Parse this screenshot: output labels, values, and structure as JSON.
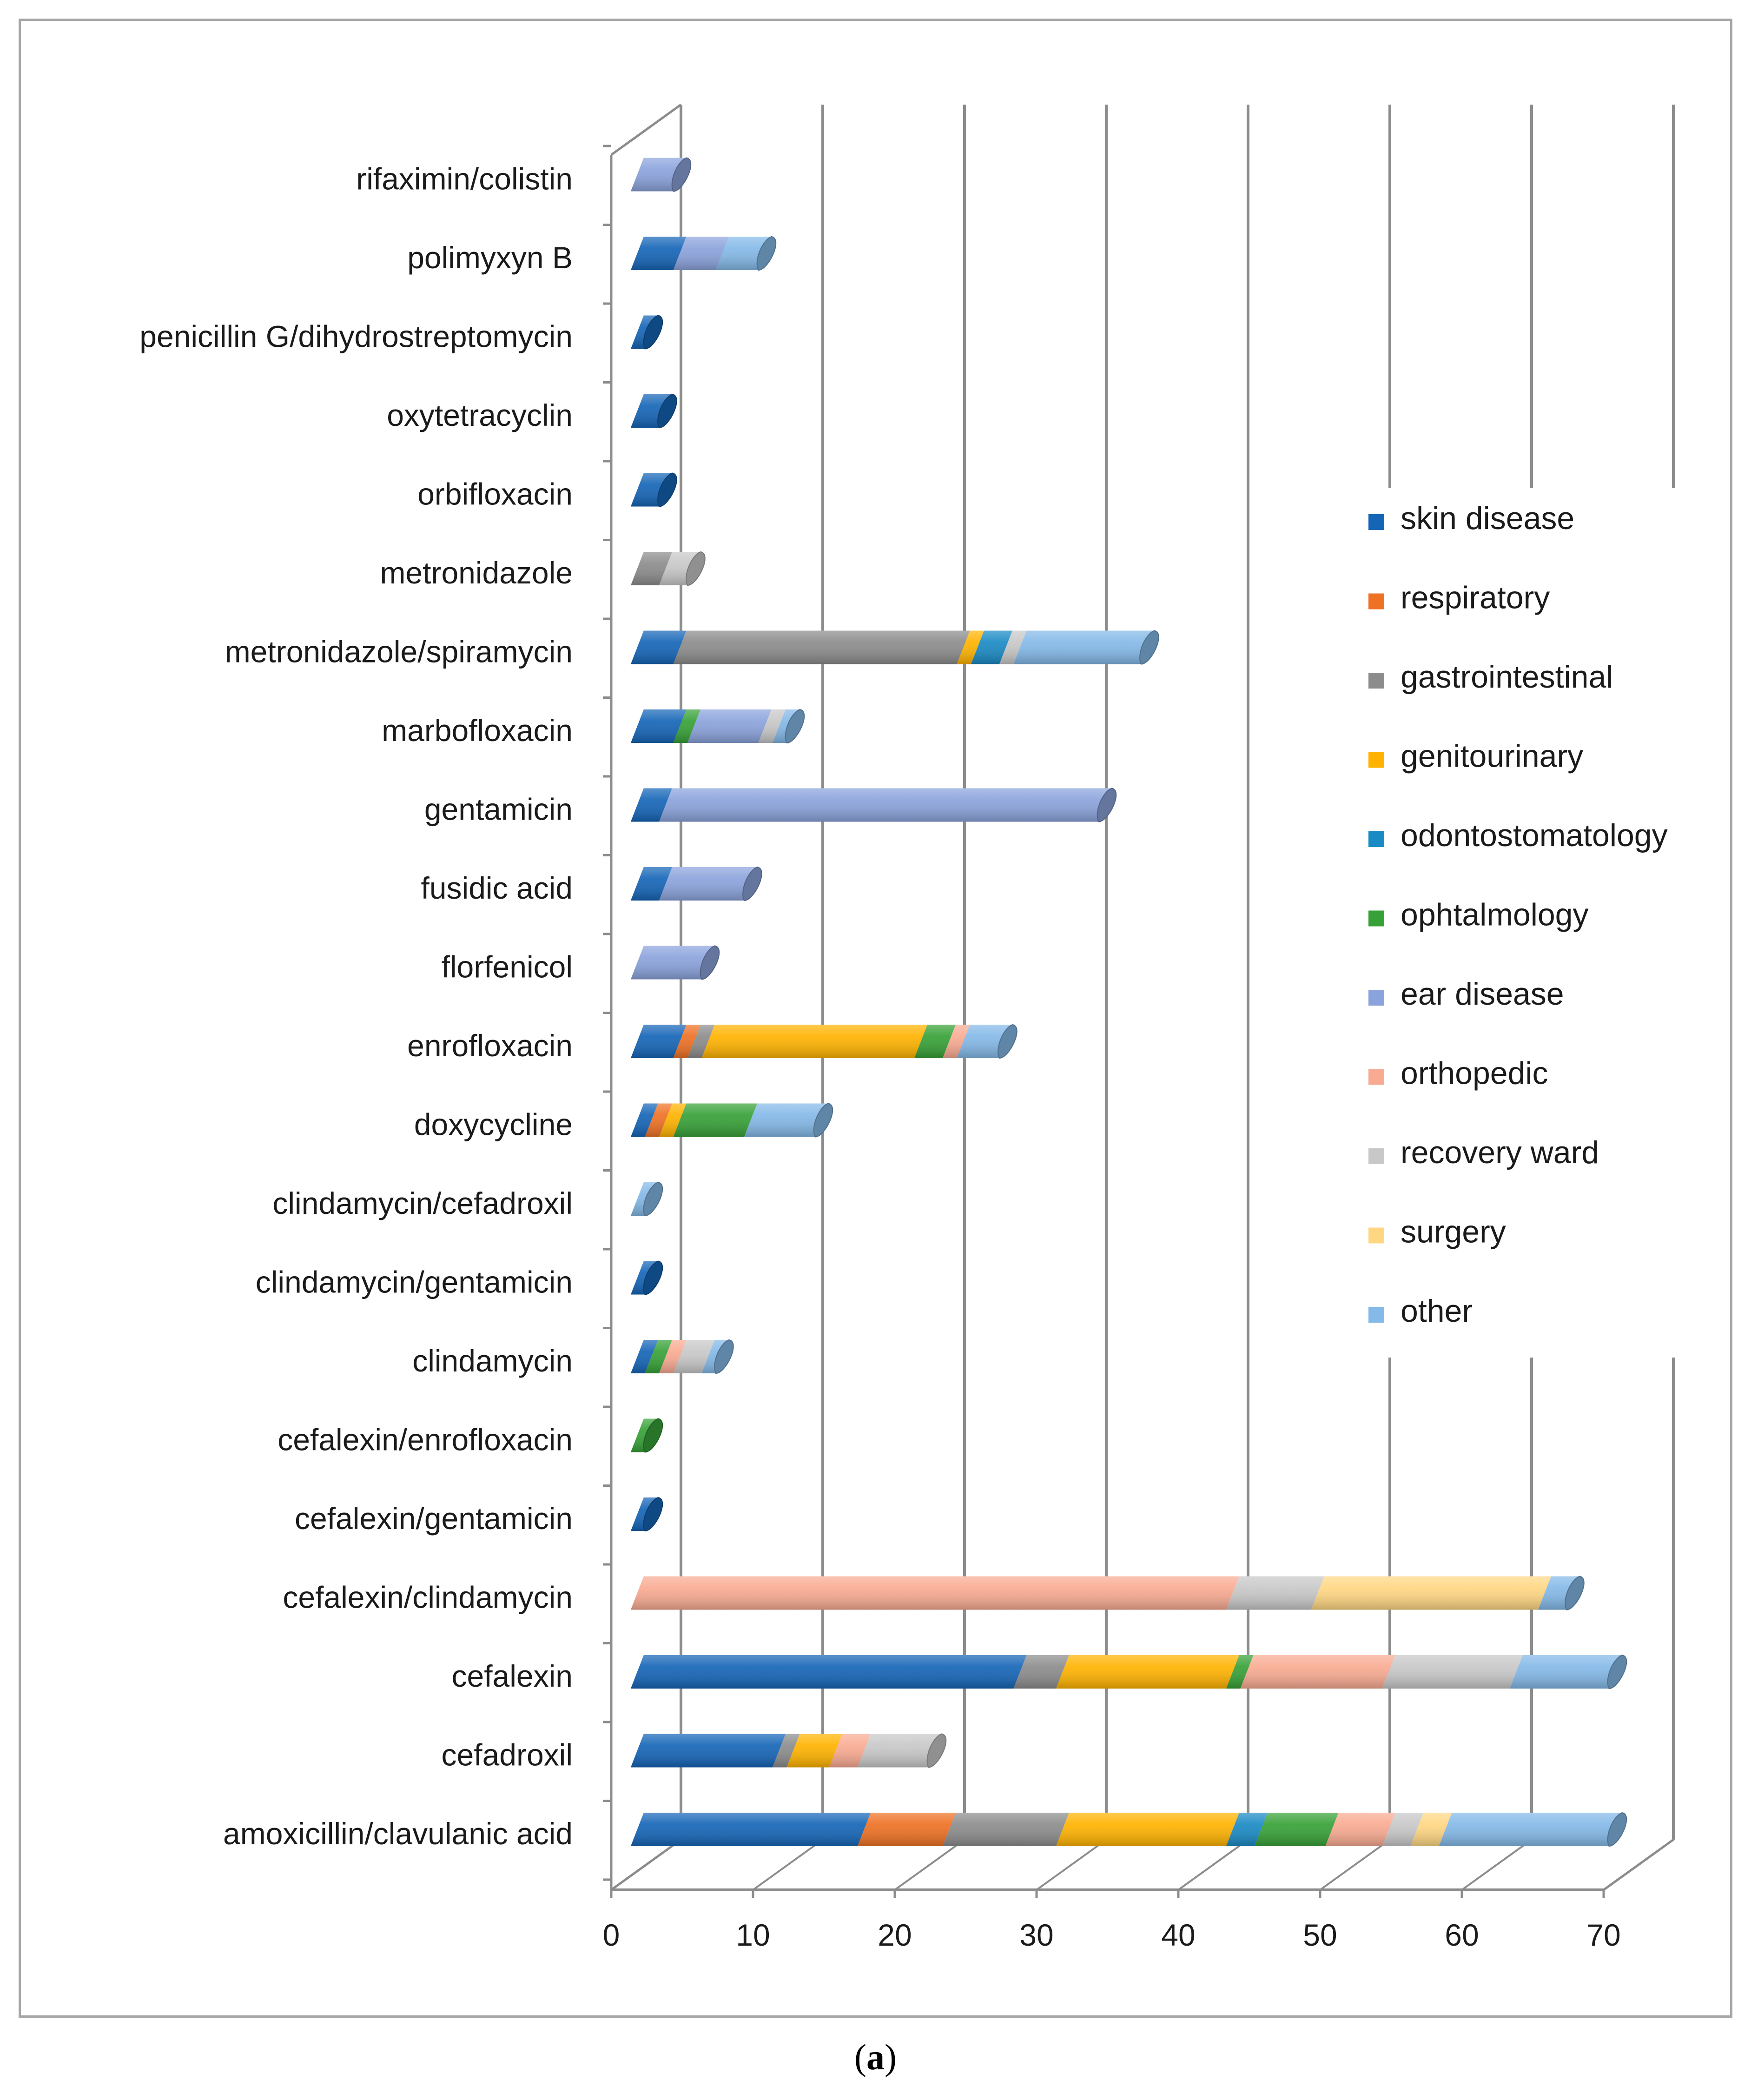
{
  "caption": {
    "open": "(",
    "letter": "a",
    "close": ")"
  },
  "chart_data": {
    "type": "bar",
    "orientation": "horizontal",
    "stacked": true,
    "style": "3d-cylinder",
    "xlim": [
      0,
      70
    ],
    "xticks": [
      0,
      10,
      20,
      30,
      40,
      50,
      60,
      70
    ],
    "grid": true,
    "legend_position": "right",
    "categories": [
      "amoxicillin/clavulanic acid",
      "cefadroxil",
      "cefalexin",
      "cefalexin/clindamycin",
      "cefalexin/gentamicin",
      "cefalexin/enrofloxacin",
      "clindamycin",
      "clindamycin/gentamicin",
      "clindamycin/cefadroxil",
      "doxycycline",
      "enrofloxacin",
      "florfenicol",
      "fusidic acid",
      "gentamicin",
      "marbofloxacin",
      "metronidazole/spiramycin",
      "metronidazole",
      "orbifloxacin",
      "oxytetracyclin",
      "penicillin G/dihydrostreptomycin",
      "polimyxyn B",
      "rifaximin/colistin"
    ],
    "series": [
      {
        "name": "skin disease",
        "color": "#1565b7",
        "values": [
          16,
          10,
          27,
          0,
          1,
          0,
          1,
          1,
          0,
          1,
          3,
          0,
          2,
          2,
          3,
          3,
          0,
          2,
          2,
          1,
          3,
          0
        ]
      },
      {
        "name": "respiratory",
        "color": "#ee7124",
        "values": [
          6,
          0,
          0,
          0,
          0,
          0,
          0,
          0,
          0,
          1,
          1,
          0,
          0,
          0,
          0,
          0,
          0,
          0,
          0,
          0,
          0,
          0
        ]
      },
      {
        "name": "gastrointestinal",
        "color": "#8c8c8c",
        "values": [
          8,
          1,
          3,
          0,
          0,
          0,
          0,
          0,
          0,
          0,
          1,
          0,
          0,
          0,
          0,
          20,
          2,
          0,
          0,
          0,
          0,
          0
        ]
      },
      {
        "name": "genitourinary",
        "color": "#ffb300",
        "values": [
          12,
          3,
          12,
          0,
          0,
          0,
          0,
          0,
          0,
          1,
          15,
          0,
          0,
          0,
          0,
          1,
          0,
          0,
          0,
          0,
          0,
          0
        ]
      },
      {
        "name": "odontostomatology",
        "color": "#1a8ac4",
        "values": [
          2,
          0,
          0,
          0,
          0,
          0,
          0,
          0,
          0,
          0,
          0,
          0,
          0,
          0,
          0,
          2,
          0,
          0,
          0,
          0,
          0,
          0
        ]
      },
      {
        "name": "ophtalmology",
        "color": "#37a137",
        "values": [
          5,
          0,
          1,
          0,
          0,
          1,
          1,
          0,
          0,
          5,
          2,
          0,
          0,
          0,
          1,
          0,
          0,
          0,
          0,
          0,
          0,
          0
        ]
      },
      {
        "name": "ear disease",
        "color": "#8ba3dc",
        "values": [
          0,
          0,
          0,
          0,
          0,
          0,
          0,
          0,
          0,
          0,
          0,
          5,
          6,
          31,
          5,
          0,
          0,
          0,
          0,
          0,
          3,
          3
        ]
      },
      {
        "name": "orthopedic",
        "color": "#f9ab92",
        "values": [
          4,
          2,
          10,
          42,
          0,
          0,
          1,
          0,
          0,
          0,
          1,
          0,
          0,
          0,
          0,
          0,
          0,
          0,
          0,
          0,
          0,
          0
        ]
      },
      {
        "name": "recovery ward",
        "color": "#c8c8c8",
        "values": [
          2,
          5,
          9,
          6,
          0,
          0,
          2,
          0,
          0,
          0,
          0,
          0,
          0,
          0,
          1,
          1,
          2,
          0,
          0,
          0,
          0,
          0
        ]
      },
      {
        "name": "surgery",
        "color": "#ffd783",
        "values": [
          2,
          0,
          0,
          16,
          0,
          0,
          0,
          0,
          0,
          0,
          0,
          0,
          0,
          0,
          0,
          0,
          0,
          0,
          0,
          0,
          0,
          0
        ]
      },
      {
        "name": "other",
        "color": "#84b9e8",
        "values": [
          12,
          0,
          7,
          2,
          0,
          0,
          1,
          0,
          1,
          5,
          3,
          0,
          0,
          0,
          1,
          9,
          0,
          0,
          0,
          0,
          3,
          0
        ]
      }
    ]
  }
}
